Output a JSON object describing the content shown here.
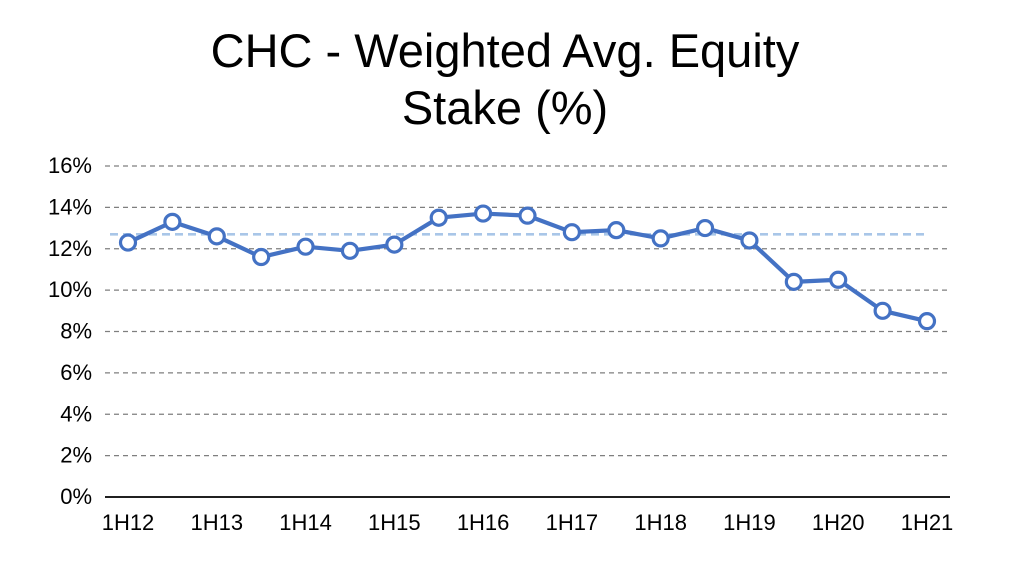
{
  "chart_data": {
    "type": "line",
    "title": "CHC - Weighted Avg. Equity Stake (%)",
    "title_lines": [
      "CHC - Weighted Avg. Equity",
      "Stake (%)"
    ],
    "categories": [
      "1H12",
      "2H12",
      "1H13",
      "2H13",
      "1H14",
      "2H14",
      "1H15",
      "2H15",
      "1H16",
      "2H16",
      "1H17",
      "2H17",
      "1H18",
      "2H18",
      "1H19",
      "2H19",
      "1H20",
      "2H20",
      "1H21"
    ],
    "series": [
      {
        "name": "Weighted Avg. Equity Stake",
        "values": [
          12.3,
          13.3,
          12.6,
          11.6,
          12.1,
          11.9,
          12.2,
          13.5,
          13.7,
          13.6,
          12.8,
          12.9,
          12.5,
          13.0,
          12.4,
          10.4,
          10.5,
          9.0,
          8.5
        ],
        "color": "#4472C4",
        "marker": "open-circle"
      }
    ],
    "reference_line": {
      "value": 12.7,
      "style": "dashed",
      "color": "#A9C6E8"
    },
    "ylim": [
      0,
      16
    ],
    "ytick_step": 2,
    "ytick_labels": [
      "0%",
      "2%",
      "4%",
      "6%",
      "8%",
      "10%",
      "12%",
      "14%",
      "16%"
    ],
    "xtick_labels": [
      "1H12",
      "1H13",
      "1H14",
      "1H15",
      "1H16",
      "1H17",
      "1H18",
      "1H19",
      "1H20",
      "1H21"
    ],
    "grid": "horizontal-dashed",
    "legend_position": "none",
    "colors": {
      "series": "#4472C4",
      "marker_fill": "#FFFFFF",
      "reference": "#A9C6E8",
      "gridline": "#7F7F7F",
      "axis": "#000000",
      "text": "#000000"
    }
  }
}
